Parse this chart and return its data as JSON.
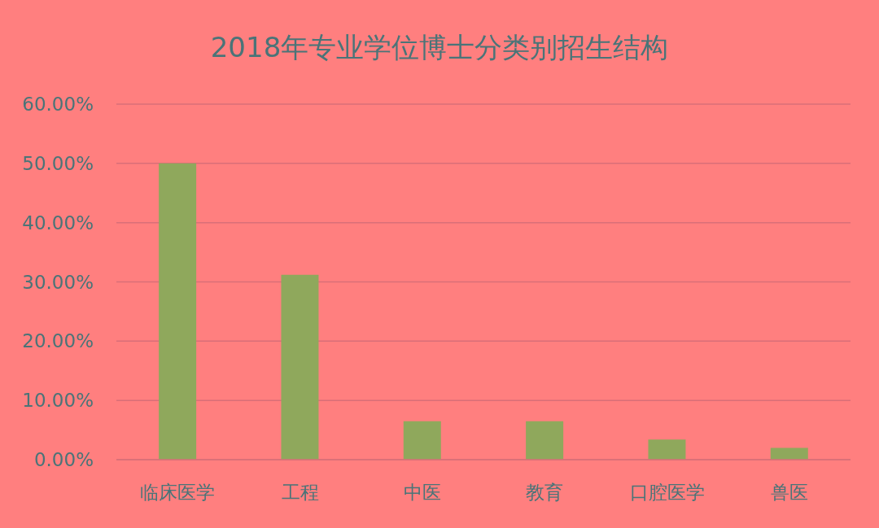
{
  "chart_data": {
    "type": "bar",
    "title": "2018年专业学位博士分类别招生结构",
    "categories": [
      "临床医学",
      "工程",
      "中医",
      "教育",
      "口腔医学",
      "兽医"
    ],
    "values": [
      50.0,
      31.2,
      6.5,
      6.5,
      3.4,
      2.0
    ],
    "color": "#8fa85c",
    "ylim": [
      0,
      60
    ],
    "yticks": [
      {
        "value": 0,
        "label": "0.00%"
      },
      {
        "value": 10,
        "label": "10.00%"
      },
      {
        "value": 20,
        "label": "20.00%"
      },
      {
        "value": 30,
        "label": "30.00%"
      },
      {
        "value": 40,
        "label": "40.00%"
      },
      {
        "value": 50,
        "label": "50.00%"
      },
      {
        "value": 60,
        "label": "60.00%"
      }
    ],
    "grid": "y"
  }
}
